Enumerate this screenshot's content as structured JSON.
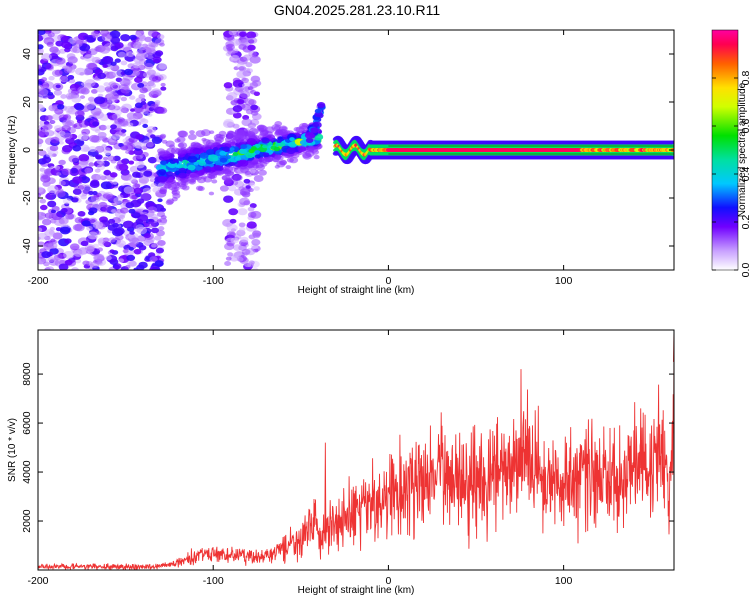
{
  "title": "GN04.2025.281.23.10.R11",
  "colors": {
    "snr_line": "#ee3333",
    "frame": "#000000",
    "background": "#ffffff"
  },
  "chart_data": [
    {
      "type": "heatmap",
      "name": "spectrogram",
      "xlabel": "Height of straight line (km)",
      "ylabel": "Frequency (Hz)",
      "xlim": [
        -200,
        163
      ],
      "ylim": [
        -50,
        50
      ],
      "xticks": [
        -200,
        -100,
        0,
        100
      ],
      "yticks": [
        -40,
        -20,
        0,
        20,
        40
      ],
      "colorbar": {
        "label": "Normalized spectral amplitude",
        "range": [
          0,
          1
        ],
        "ticks": [
          0.0,
          0.2,
          0.4,
          0.6,
          0.8
        ]
      },
      "features": [
        {
          "description": "broadband scatter",
          "x_range": [
            -200,
            -128
          ],
          "freq_range": [
            -50,
            50
          ],
          "amplitude": 0.12
        },
        {
          "description": "scatter column",
          "x_range": [
            -92,
            -75
          ],
          "freq_range": [
            -50,
            50
          ],
          "amplitude": 0.1
        },
        {
          "description": "signal band onset",
          "x_range": [
            -130,
            -40
          ],
          "freq_center": [
            -8,
            5
          ],
          "amplitude": 0.35
        },
        {
          "description": "tilted feature",
          "x_range": [
            -45,
            -38
          ],
          "freq_range": [
            5,
            18
          ],
          "amplitude": 0.2
        },
        {
          "description": "steady carrier",
          "x_range": [
            -30,
            163
          ],
          "freq_center": 0,
          "amplitude": 0.95
        }
      ]
    },
    {
      "type": "line",
      "name": "snr",
      "xlabel": "Height of straight line (km)",
      "ylabel": "SNR (10 * v/v)",
      "xlim": [
        -200,
        163
      ],
      "ylim": [
        0,
        9800
      ],
      "xticks": [
        -200,
        -100,
        0,
        100
      ],
      "yticks": [
        2000,
        4000,
        6000,
        8000
      ],
      "series": [
        {
          "name": "SNR",
          "x": [
            -200,
            -180,
            -160,
            -140,
            -125,
            -115,
            -105,
            -95,
            -85,
            -75,
            -65,
            -58,
            -52,
            -46,
            -42,
            -38,
            -34,
            -30,
            -24,
            -18,
            -12,
            -6,
            0,
            6,
            12,
            18,
            24,
            30,
            36,
            42,
            48,
            54,
            60,
            66,
            72,
            77,
            82,
            88,
            94,
            100,
            106,
            112,
            118,
            124,
            130,
            136,
            142,
            148,
            152,
            156,
            158,
            160,
            162,
            163
          ],
          "y": [
            150,
            150,
            130,
            120,
            200,
            450,
            700,
            600,
            600,
            500,
            650,
            1000,
            1200,
            1600,
            1900,
            1300,
            1900,
            1800,
            2100,
            2300,
            2700,
            2700,
            2800,
            3100,
            3400,
            3600,
            3800,
            3900,
            3800,
            4000,
            3900,
            3800,
            3900,
            4000,
            4100,
            4800,
            4300,
            4100,
            3800,
            3600,
            3800,
            4000,
            3900,
            3600,
            3600,
            3900,
            4200,
            4100,
            4500,
            4600,
            4300,
            2500,
            4900,
            8500
          ],
          "peaks": [
            {
              "x": -36,
              "y": 5200
            },
            {
              "x": 77,
              "y": 5300
            },
            {
              "x": 144,
              "y": 6600
            },
            {
              "x": 163,
              "y": 9800
            }
          ]
        }
      ]
    }
  ]
}
